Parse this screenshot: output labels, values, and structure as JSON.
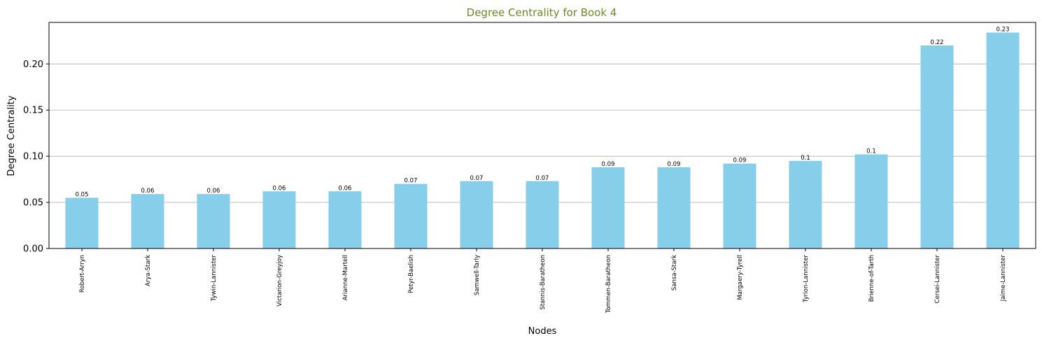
{
  "colors": {
    "bar": "#87CEEB",
    "title": "#6B8E23",
    "grid": "#b0b0b0",
    "axis": "#000000"
  },
  "chart_data": {
    "type": "bar",
    "title": "Degree Centrality for Book 4",
    "xlabel": "Nodes",
    "ylabel": "Degree Centrality",
    "ylim": [
      0,
      0.245
    ],
    "yticks": [
      "0.00",
      "0.05",
      "0.10",
      "0.15",
      "0.20"
    ],
    "ytick_values": [
      0.0,
      0.05,
      0.1,
      0.15,
      0.2
    ],
    "grid": "y",
    "categories": [
      "Robert-Arryn",
      "Arya-Stark",
      "Tywin-Lannister",
      "Victarion-Greyjoy",
      "Arianne-Martell",
      "Petyr-Baelish",
      "Samwell-Tarly",
      "Stannis-Baratheon",
      "Tommen-Baratheon",
      "Sansa-Stark",
      "Margaery-Tyrell",
      "Tyrion-Lannister",
      "Brienne-of-Tarth",
      "Cersei-Lannister",
      "Jaime-Lannister"
    ],
    "values": [
      0.055,
      0.059,
      0.059,
      0.062,
      0.062,
      0.07,
      0.073,
      0.073,
      0.088,
      0.088,
      0.092,
      0.095,
      0.102,
      0.22,
      0.234
    ],
    "data_labels": [
      "0.05",
      "0.06",
      "0.06",
      "0.06",
      "0.06",
      "0.07",
      "0.07",
      "0.07",
      "0.09",
      "0.09",
      "0.09",
      "0.1",
      "0.1",
      "0.22",
      "0.23"
    ]
  }
}
